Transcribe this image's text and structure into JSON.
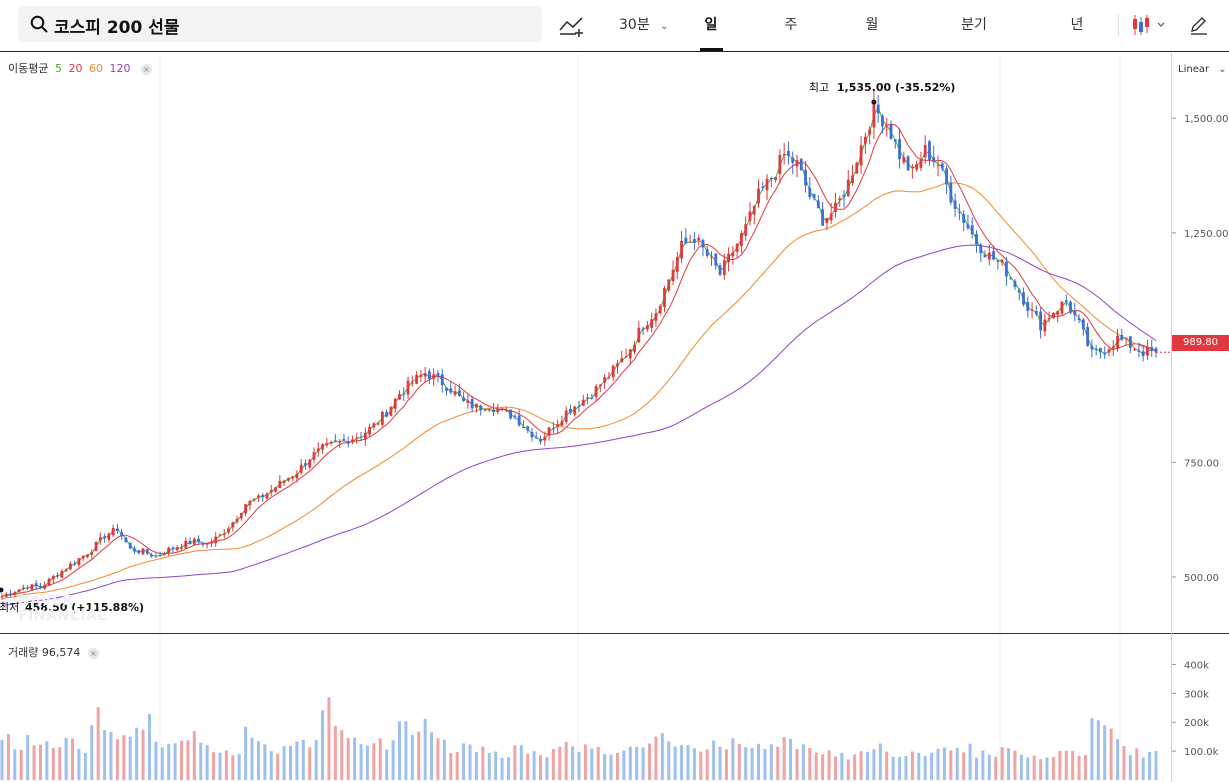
{
  "search": {
    "query": "코스피 200 선물",
    "icon": "search-icon"
  },
  "toolbar": {
    "indicator_icon": "add-indicator-icon",
    "interval_label": "30분",
    "tabs": [
      {
        "label": "일",
        "active": true
      },
      {
        "label": "주",
        "active": false
      },
      {
        "label": "월",
        "active": false
      },
      {
        "label": "분기",
        "active": false
      },
      {
        "label": "년",
        "active": false
      }
    ],
    "chart_type_icon": "candlestick-icon",
    "draw_icon": "pencil-icon"
  },
  "legend": {
    "label": "이동평균",
    "periods": [
      "5",
      "20",
      "60",
      "120"
    ]
  },
  "scale": {
    "label": "Linear"
  },
  "annotations": {
    "high_label": "최고",
    "high_value": "1,535.00 (-35.52%)",
    "low_label": "최저",
    "low_value": "458.50 (+115.88%)"
  },
  "current_price": "989.80",
  "volume_legend": {
    "label": "거래량",
    "value": "96,574"
  },
  "watermark": [
    "NAVER",
    "FINANCIAL"
  ],
  "colors": {
    "up": "#e0383e",
    "down": "#3a6fd8",
    "ma5": "#4caf3a",
    "ma20": "#e0383e",
    "ma60": "#f08a2a",
    "ma120": "#8e44c7",
    "vol_up": "#f1a3a3",
    "vol_down": "#9ec0f0"
  },
  "chart_data": {
    "type": "candlestick",
    "y_ticks": [
      "1,500.00",
      "1,250.00",
      "750.00",
      "500.00"
    ],
    "y_tick_values": [
      1500,
      1250,
      750,
      500
    ],
    "ylim": [
      380,
      1640
    ],
    "volume_ticks": [
      "400k",
      "300k",
      "200k",
      "100.0k"
    ],
    "volume_tick_values": [
      400000,
      300000,
      200000,
      100000
    ],
    "volume_max": 450000,
    "high": 1535,
    "low": 458.5,
    "last": 989.8,
    "close_path": [
      458,
      470,
      480,
      478,
      500,
      520,
      540,
      560,
      590,
      605,
      560,
      555,
      545,
      560,
      570,
      578,
      572,
      590,
      620,
      660,
      670,
      690,
      710,
      730,
      760,
      780,
      790,
      800,
      810,
      830,
      860,
      900,
      925,
      945,
      930,
      910,
      880,
      870,
      875,
      860,
      850,
      820,
      800,
      830,
      860,
      880,
      900,
      930,
      960,
      1000,
      1050,
      1080,
      1150,
      1220,
      1240,
      1200,
      1160,
      1210,
      1260,
      1330,
      1370,
      1420,
      1400,
      1330,
      1280,
      1300,
      1360,
      1440,
      1520,
      1490,
      1420,
      1380,
      1430,
      1400,
      1330,
      1280,
      1230,
      1200,
      1180,
      1140,
      1090,
      1050,
      1080,
      1100,
      1050,
      985,
      995,
      1020,
      1005,
      990,
      989.8
    ],
    "volume": [
      150000,
      120000,
      140000,
      130000,
      120000,
      160000,
      110000,
      220000,
      180000,
      150000,
      170000,
      200000,
      130000,
      140000,
      120000,
      150000,
      110000,
      90000,
      100000,
      170000,
      120000,
      100000,
      110000,
      140000,
      130000,
      260000,
      180000,
      150000,
      140000,
      130000,
      120000,
      180000,
      160000,
      190000,
      150000,
      100000,
      130000,
      110000,
      90000,
      80000,
      110000,
      100000,
      90000,
      120000,
      130000,
      110000,
      100000,
      90000,
      100000,
      120000,
      110000,
      150000,
      130000,
      120000,
      110000,
      120000,
      100000,
      130000,
      110000,
      120000,
      130000,
      140000,
      120000,
      110000,
      100000,
      90000,
      80000,
      100000,
      110000,
      90000,
      80000,
      100000,
      90000,
      100000,
      120000,
      110000,
      90000,
      80000,
      100000,
      90000,
      80000,
      70000,
      90000,
      100000,
      80000,
      230000,
      170000,
      130000,
      100000,
      90000,
      96574
    ]
  }
}
